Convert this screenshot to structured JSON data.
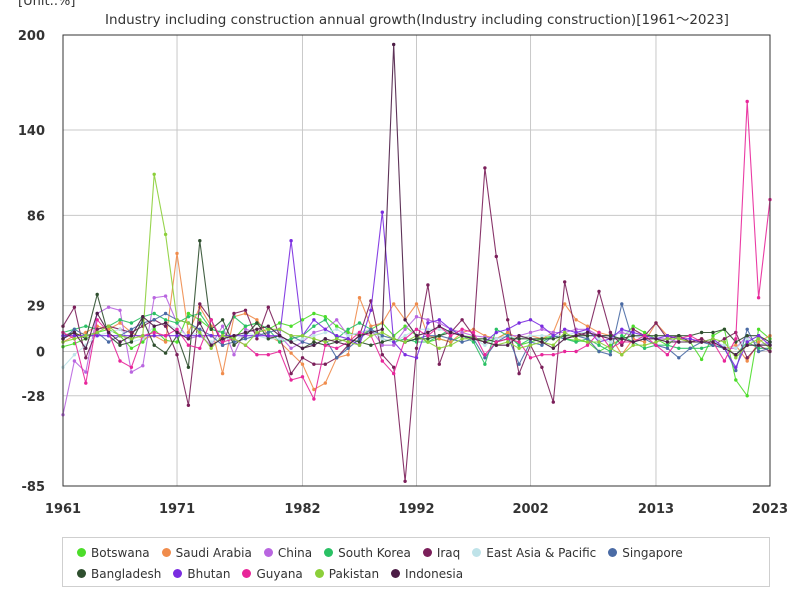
{
  "unit_label": "[Unit:.%]",
  "chart_data": {
    "type": "line",
    "title": "Industry including construction annual growth(Industry including construction)[1961～2023]",
    "xlabel": "",
    "ylabel": "",
    "xlim": [
      1961,
      2023
    ],
    "ylim": [
      -85,
      200
    ],
    "yticks": [
      200,
      140,
      86,
      29,
      0,
      -28,
      -85
    ],
    "ytick_labels": [
      "200",
      "140",
      "86",
      "29",
      "0",
      "-28",
      "-85"
    ],
    "xticks": [
      1961,
      1971,
      1982,
      1992,
      2002,
      2013,
      2023
    ],
    "xtick_labels": [
      "1961",
      "1971",
      "1982",
      "1992",
      "2002",
      "2013",
      "2023"
    ],
    "grid": true,
    "legend_position": "bottom",
    "series": [
      {
        "name": "Botswana",
        "color": "#4cdd2a",
        "start": 1961,
        "values": [
          3,
          5,
          8,
          12,
          14,
          10,
          2,
          6,
          14,
          7,
          6,
          24,
          20,
          14,
          12,
          8,
          16,
          18,
          14,
          18,
          16,
          20,
          24,
          22,
          16,
          12,
          10,
          14,
          18,
          10,
          16,
          10,
          6,
          8,
          6,
          10,
          9,
          6,
          8,
          12,
          4,
          6,
          8,
          10,
          8,
          7,
          6,
          0,
          4,
          8,
          16,
          12,
          8,
          4,
          10,
          6,
          -5,
          10,
          14,
          -18,
          -28,
          14,
          8
        ]
      },
      {
        "name": "Saudi Arabia",
        "color": "#f08c4c",
        "start": 1961,
        "values": [
          6,
          10,
          12,
          16,
          14,
          18,
          12,
          8,
          10,
          6,
          62,
          12,
          28,
          16,
          -14,
          22,
          24,
          20,
          10,
          6,
          -1,
          -8,
          -24,
          -20,
          -4,
          -2,
          34,
          16,
          18,
          30,
          20,
          30,
          10,
          8,
          6,
          12,
          14,
          10,
          8,
          12,
          8,
          10,
          8,
          12,
          30,
          20,
          16,
          12,
          10,
          -2,
          8,
          6,
          18,
          10,
          8,
          6,
          8,
          4,
          2,
          4,
          -6,
          6,
          10
        ]
      },
      {
        "name": "China",
        "color": "#b966e0",
        "start": 1961,
        "values": [
          -40,
          -6,
          -13,
          24,
          28,
          26,
          -13,
          -9,
          34,
          35,
          18,
          8,
          10,
          4,
          16,
          -2,
          14,
          12,
          9,
          10,
          2,
          6,
          12,
          14,
          20,
          10,
          12,
          14,
          4,
          4,
          14,
          22,
          20,
          18,
          14,
          12,
          10,
          9,
          8,
          10,
          10,
          12,
          14,
          12,
          12,
          14,
          14,
          10,
          10,
          12,
          10,
          8,
          8,
          8,
          6,
          6,
          6,
          6,
          2,
          2,
          10,
          4,
          6
        ]
      },
      {
        "name": "South Korea",
        "color": "#2ac164",
        "start": 1961,
        "values": [
          12,
          14,
          16,
          14,
          16,
          20,
          18,
          22,
          24,
          20,
          18,
          22,
          24,
          14,
          12,
          22,
          16,
          18,
          14,
          6,
          8,
          10,
          16,
          20,
          8,
          14,
          18,
          14,
          8,
          6,
          8,
          6,
          6,
          10,
          14,
          10,
          6,
          -8,
          14,
          10,
          4,
          8,
          6,
          10,
          8,
          6,
          8,
          4,
          0,
          10,
          6,
          2,
          4,
          4,
          2,
          2,
          2,
          4,
          2,
          -2,
          6,
          2,
          2
        ]
      },
      {
        "name": "Iraq",
        "color": "#7b1f5a",
        "start": 1961,
        "values": [
          16,
          28,
          -4,
          14,
          16,
          14,
          12,
          16,
          20,
          16,
          -2,
          -34,
          30,
          20,
          4,
          24,
          26,
          8,
          28,
          10,
          -14,
          -4,
          -8,
          -8,
          -4,
          4,
          10,
          32,
          -2,
          -10,
          -82,
          2,
          42,
          -8,
          12,
          20,
          10,
          116,
          60,
          20,
          -14,
          4,
          -10,
          -32,
          44,
          12,
          10,
          38,
          12,
          4,
          14,
          10,
          18,
          8,
          10,
          6,
          8,
          4,
          8,
          12,
          -4,
          4,
          0
        ]
      },
      {
        "name": "East Asia & Pacific",
        "color": "#bfe3e9",
        "start": 1961,
        "values": [
          -10,
          -2,
          4,
          10,
          12,
          14,
          6,
          8,
          16,
          18,
          14,
          10,
          12,
          6,
          10,
          6,
          12,
          10,
          8,
          8,
          6,
          8,
          10,
          12,
          14,
          10,
          12,
          14,
          8,
          6,
          10,
          14,
          14,
          14,
          12,
          10,
          8,
          4,
          8,
          10,
          8,
          10,
          10,
          10,
          10,
          12,
          12,
          8,
          6,
          14,
          10,
          8,
          8,
          6,
          6,
          6,
          6,
          6,
          4,
          2,
          8,
          4,
          5
        ]
      },
      {
        "name": "Singapore",
        "color": "#4a6ba5",
        "start": 1961,
        "values": [
          8,
          14,
          10,
          12,
          6,
          10,
          14,
          18,
          20,
          24,
          20,
          18,
          14,
          10,
          4,
          6,
          8,
          10,
          12,
          14,
          10,
          6,
          4,
          8,
          -4,
          2,
          8,
          14,
          10,
          8,
          6,
          8,
          10,
          10,
          8,
          6,
          8,
          -4,
          6,
          10,
          -8,
          6,
          4,
          10,
          8,
          10,
          8,
          0,
          -2,
          30,
          6,
          8,
          4,
          2,
          -4,
          2,
          6,
          4,
          2,
          -12,
          14,
          0,
          2
        ]
      },
      {
        "name": "Bangladesh",
        "color": "#2f4f2f",
        "start": 1961,
        "values": [
          10,
          12,
          8,
          36,
          10,
          4,
          6,
          20,
          4,
          -1,
          10,
          -10,
          70,
          14,
          20,
          4,
          10,
          18,
          8,
          10,
          6,
          2,
          6,
          4,
          6,
          8,
          6,
          4,
          6,
          8,
          6,
          8,
          8,
          10,
          12,
          10,
          8,
          8,
          6,
          8,
          8,
          8,
          8,
          8,
          10,
          10,
          10,
          10,
          10,
          8,
          10,
          10,
          10,
          10,
          10,
          10,
          12,
          12,
          14,
          6,
          10,
          10,
          6
        ]
      },
      {
        "name": "Bhutan",
        "color": "#7a2ce0",
        "start": 1961,
        "values": [
          10,
          10,
          10,
          10,
          10,
          10,
          10,
          10,
          10,
          10,
          10,
          10,
          10,
          10,
          10,
          10,
          10,
          10,
          10,
          10,
          70,
          10,
          20,
          14,
          10,
          8,
          4,
          26,
          88,
          6,
          -2,
          -4,
          18,
          20,
          14,
          10,
          8,
          6,
          12,
          14,
          18,
          20,
          16,
          10,
          14,
          12,
          14,
          6,
          8,
          14,
          12,
          10,
          8,
          10,
          8,
          8,
          6,
          8,
          2,
          -10,
          6,
          10,
          4
        ]
      },
      {
        "name": "Guyana",
        "color": "#e8269a",
        "start": 1961,
        "values": [
          12,
          8,
          -20,
          20,
          12,
          -6,
          -10,
          10,
          12,
          10,
          14,
          4,
          2,
          20,
          6,
          8,
          4,
          -2,
          -2,
          0,
          -18,
          -16,
          -30,
          4,
          2,
          6,
          12,
          10,
          -6,
          -14,
          8,
          14,
          10,
          16,
          10,
          14,
          12,
          -2,
          6,
          8,
          6,
          -4,
          -2,
          -2,
          0,
          0,
          4,
          12,
          2,
          6,
          6,
          10,
          4,
          -2,
          8,
          10,
          6,
          6,
          -6,
          8,
          158,
          34,
          96
        ]
      },
      {
        "name": "Pakistan",
        "color": "#8ccf3a",
        "start": 1961,
        "values": [
          6,
          8,
          10,
          12,
          16,
          10,
          8,
          10,
          112,
          74,
          20,
          18,
          12,
          2,
          10,
          8,
          4,
          12,
          14,
          14,
          10,
          10,
          8,
          6,
          8,
          6,
          4,
          10,
          12,
          8,
          6,
          10,
          6,
          2,
          4,
          8,
          8,
          6,
          4,
          6,
          2,
          4,
          6,
          4,
          12,
          8,
          6,
          6,
          2,
          -2,
          4,
          4,
          6,
          8,
          8,
          6,
          6,
          8,
          6,
          -4,
          4,
          8,
          2
        ]
      },
      {
        "name": "Indonesia",
        "color": "#4d1d46",
        "start": 1961,
        "values": [
          8,
          12,
          2,
          24,
          12,
          6,
          10,
          22,
          16,
          18,
          12,
          8,
          18,
          4,
          8,
          10,
          12,
          14,
          16,
          10,
          6,
          2,
          4,
          8,
          6,
          4,
          10,
          12,
          14,
          194,
          20,
          10,
          12,
          16,
          12,
          10,
          8,
          6,
          4,
          4,
          10,
          8,
          6,
          2,
          8,
          10,
          12,
          10,
          8,
          8,
          6,
          8,
          8,
          6,
          6,
          6,
          6,
          6,
          2,
          -2,
          4,
          4,
          4
        ]
      }
    ]
  }
}
